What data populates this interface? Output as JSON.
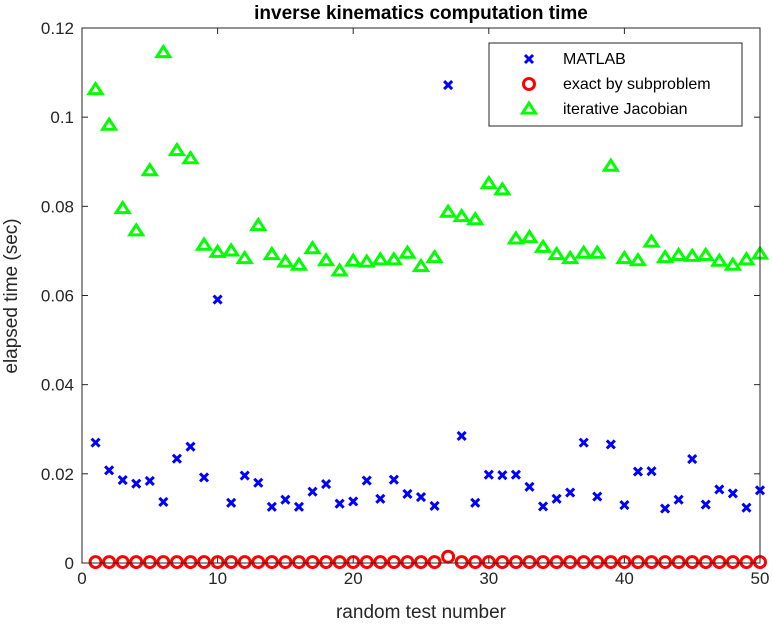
{
  "chart_data": {
    "type": "scatter",
    "title": "inverse kinematics computation time",
    "xlabel": "random test number",
    "ylabel": "elapsed time (sec)",
    "xlim": [
      0,
      50
    ],
    "ylim": [
      0,
      0.12
    ],
    "xticks": [
      0,
      10,
      20,
      30,
      40,
      50
    ],
    "xtick_labels": [
      "0",
      "10",
      "20",
      "30",
      "40",
      "50"
    ],
    "yticks": [
      0,
      0.02,
      0.04,
      0.06,
      0.08,
      0.1,
      0.12
    ],
    "ytick_labels": [
      "0",
      "0.02",
      "0.04",
      "0.06",
      "0.08",
      "0.1",
      "0.12"
    ],
    "grid": false,
    "legend_position": "top-right",
    "x": [
      1,
      2,
      3,
      4,
      5,
      6,
      7,
      8,
      9,
      10,
      11,
      12,
      13,
      14,
      15,
      16,
      17,
      18,
      19,
      20,
      21,
      22,
      23,
      24,
      25,
      26,
      27,
      28,
      29,
      30,
      31,
      32,
      33,
      34,
      35,
      36,
      37,
      38,
      39,
      40,
      41,
      42,
      43,
      44,
      45,
      46,
      47,
      48,
      49,
      50
    ],
    "series": [
      {
        "name": "MATLAB",
        "marker": "x",
        "color": "#0000ff",
        "values": [
          0.027,
          0.0208,
          0.0186,
          0.0178,
          0.0184,
          0.0137,
          0.0234,
          0.0261,
          0.0192,
          0.0591,
          0.0135,
          0.0196,
          0.018,
          0.0126,
          0.0142,
          0.0126,
          0.016,
          0.0177,
          0.0133,
          0.0138,
          0.0185,
          0.0144,
          0.0187,
          0.0155,
          0.0148,
          0.0128,
          0.1072,
          0.0285,
          0.0135,
          0.0198,
          0.0197,
          0.0198,
          0.0171,
          0.0127,
          0.0144,
          0.0158,
          0.027,
          0.0149,
          0.0266,
          0.013,
          0.0205,
          0.0206,
          0.0122,
          0.0142,
          0.0233,
          0.0131,
          0.0165,
          0.0156,
          0.0124,
          0.0163
        ]
      },
      {
        "name": "exact by subproblem",
        "marker": "o",
        "color": "#ff0000",
        "values": [
          0.0002,
          0.0002,
          0.0002,
          0.0002,
          0.0002,
          0.0002,
          0.0002,
          0.0002,
          0.0002,
          0.0002,
          0.0002,
          0.0002,
          0.0002,
          0.0002,
          0.0002,
          0.0002,
          0.0002,
          0.0002,
          0.0002,
          0.0002,
          0.0002,
          0.0002,
          0.0002,
          0.0002,
          0.0002,
          0.0002,
          0.0014,
          0.0002,
          0.0002,
          0.0002,
          0.0002,
          0.0002,
          0.0002,
          0.0002,
          0.0002,
          0.0002,
          0.0002,
          0.0002,
          0.0002,
          0.0002,
          0.0002,
          0.0002,
          0.0002,
          0.0002,
          0.0002,
          0.0002,
          0.0002,
          0.0002,
          0.0002,
          0.0002
        ]
      },
      {
        "name": "iterative Jacobian",
        "marker": "triangle-up",
        "color": "#00ff00",
        "values": [
          0.1062,
          0.0982,
          0.0795,
          0.0745,
          0.088,
          0.1145,
          0.0925,
          0.0907,
          0.0713,
          0.0697,
          0.07,
          0.0683,
          0.0757,
          0.0692,
          0.0675,
          0.0668,
          0.0705,
          0.0678,
          0.0655,
          0.0677,
          0.0675,
          0.068,
          0.068,
          0.0695,
          0.0665,
          0.0685,
          0.0787,
          0.0777,
          0.077,
          0.0851,
          0.0837,
          0.0727,
          0.073,
          0.0708,
          0.0692,
          0.0683,
          0.0695,
          0.0695,
          0.089,
          0.0683,
          0.0678,
          0.072,
          0.0685,
          0.069,
          0.0688,
          0.069,
          0.0677,
          0.0668,
          0.068,
          0.0693
        ]
      }
    ]
  }
}
